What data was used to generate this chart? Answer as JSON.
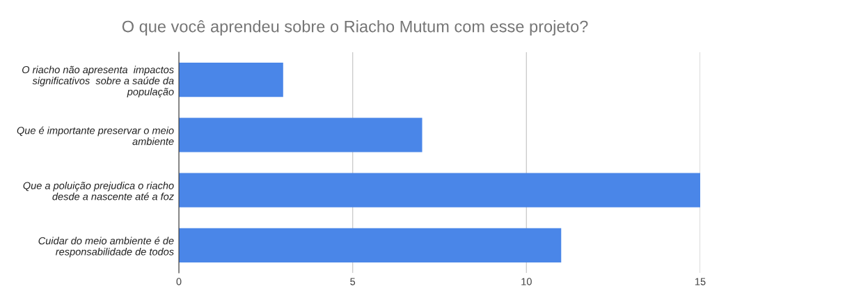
{
  "chart_data": {
    "type": "bar",
    "orientation": "horizontal",
    "title": "O que você aprendeu sobre o Riacho Mutum com esse projeto?",
    "categories": [
      "O riacho não apresenta  impactos\nsignificativos  sobre a saúde da\npopulação",
      "Que é importante preservar o meio\nambiente",
      "Que a poluição prejudica o riacho\ndesde a nascente até a foz",
      "Cuidar do meio ambiente é de\nresponsabilidade de todos"
    ],
    "values": [
      3,
      7,
      15,
      11
    ],
    "color": "#4a86e8",
    "xlim": [
      0,
      15
    ],
    "xticks": [
      0,
      5,
      10,
      15
    ],
    "grid": "x"
  }
}
